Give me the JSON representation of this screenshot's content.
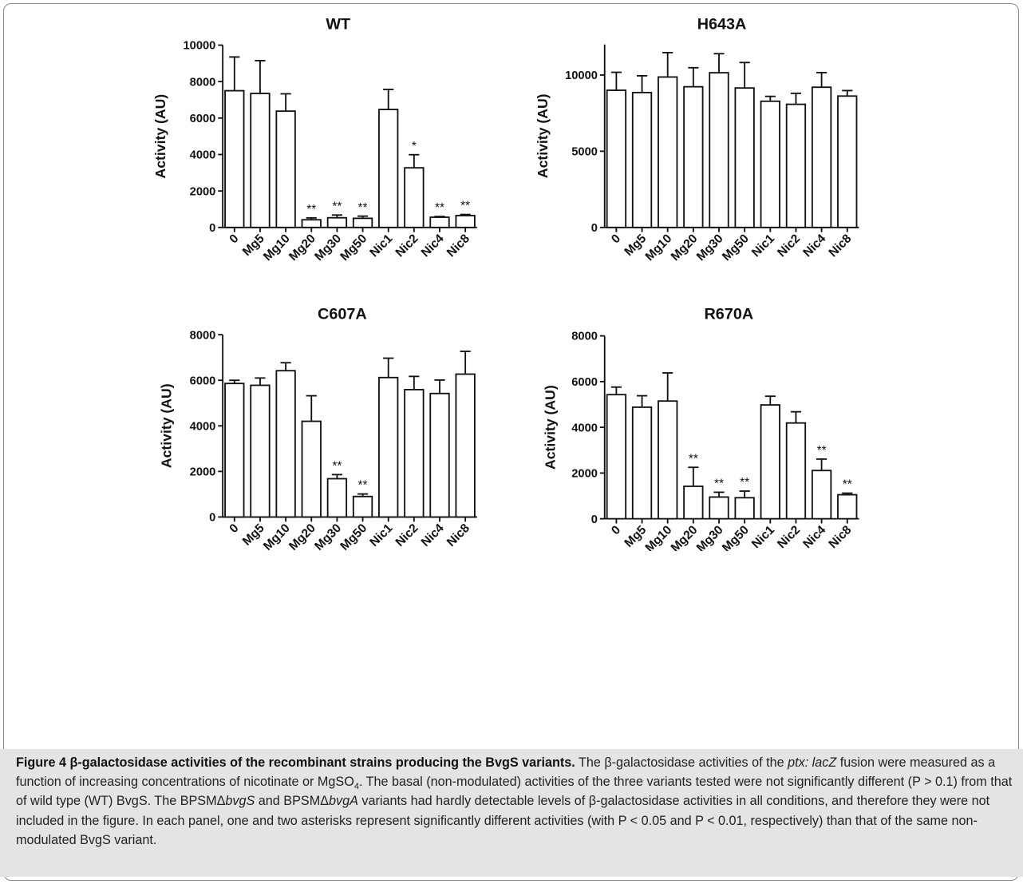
{
  "chart_data": [
    {
      "type": "bar",
      "title": "WT",
      "ylabel": "Activity (AU)",
      "categories": [
        "0",
        "Mg5",
        "Mg10",
        "Mg20",
        "Mg30",
        "Mg50",
        "Nic1",
        "Nic2",
        "Nic4",
        "Nic8"
      ],
      "values": [
        7500,
        7350,
        6380,
        420,
        530,
        500,
        6470,
        3270,
        560,
        650
      ],
      "error": [
        1850,
        1800,
        950,
        100,
        150,
        120,
        1100,
        720,
        40,
        60
      ],
      "significance": [
        "",
        "",
        "",
        "**",
        "**",
        "**",
        "",
        "*",
        "**",
        "**"
      ],
      "ylim": [
        0,
        10000
      ],
      "yticks": [
        0,
        2000,
        4000,
        6000,
        8000,
        10000
      ]
    },
    {
      "type": "bar",
      "title": "H643A",
      "ylabel": "Activity (AU)",
      "categories": [
        "0",
        "Mg5",
        "Mg10",
        "Mg20",
        "Mg30",
        "Mg50",
        "Nic1",
        "Nic2",
        "Nic4",
        "Nic8"
      ],
      "values": [
        9000,
        8850,
        9870,
        9230,
        10150,
        9150,
        8280,
        8080,
        9200,
        8620
      ],
      "error": [
        1180,
        1100,
        1600,
        1250,
        1250,
        1670,
        320,
        720,
        960,
        360
      ],
      "significance": [
        "",
        "",
        "",
        "",
        "",
        "",
        "",
        "",
        "",
        ""
      ],
      "ylim": [
        0,
        12000
      ],
      "yticks": [
        0,
        5000,
        10000
      ]
    },
    {
      "type": "bar",
      "title": "C607A",
      "ylabel": "Activity (AU)",
      "categories": [
        "0",
        "Mg5",
        "Mg10",
        "Mg20",
        "Mg30",
        "Mg50",
        "Nic1",
        "Nic2",
        "Nic4",
        "Nic8"
      ],
      "values": [
        5860,
        5780,
        6420,
        4200,
        1680,
        900,
        6120,
        5590,
        5420,
        6270
      ],
      "error": [
        140,
        320,
        350,
        1120,
        180,
        110,
        850,
        580,
        590,
        1000
      ],
      "significance": [
        "",
        "",
        "",
        "",
        "**",
        "**",
        "",
        "",
        "",
        ""
      ],
      "ylim": [
        0,
        8000
      ],
      "yticks": [
        0,
        2000,
        4000,
        6000,
        8000
      ]
    },
    {
      "type": "bar",
      "title": "R670A",
      "ylabel": "Activity (AU)",
      "categories": [
        "0",
        "Mg5",
        "Mg10",
        "Mg20",
        "Mg30",
        "Mg50",
        "Nic1",
        "Nic2",
        "Nic4",
        "Nic8"
      ],
      "values": [
        5430,
        4880,
        5150,
        1420,
        950,
        920,
        4980,
        4190,
        2110,
        1050
      ],
      "error": [
        330,
        500,
        1230,
        830,
        210,
        290,
        380,
        490,
        500,
        70
      ],
      "significance": [
        "",
        "",
        "",
        "**",
        "**",
        "**",
        "",
        "",
        "**",
        "**"
      ],
      "ylim": [
        0,
        8000
      ],
      "yticks": [
        0,
        2000,
        4000,
        6000,
        8000
      ]
    }
  ],
  "caption": {
    "figure_label": "Figure 4",
    "title": "β-galactosidase activities of the recombinant strains producing the BvgS variants.",
    "text_1": " The β-galactosidase activities of the ",
    "fusion_italic": "ptx: lacZ",
    "text_2": " fusion were measured as a function of increasing concentrations of nicotinate or MgSO",
    "text_sub": "4",
    "text_3": ". The basal (non-modulated) activities of the three variants tested were not significantly different (P > 0.1) from that of wild type (WT) BvgS. The BPSMΔ",
    "bvgS_italic": "bvgS",
    "text_4": " and BPSMΔ",
    "bvgA_italic": "bvgA",
    "text_5": " variants had hardly detectable levels of β-galactosidase activities in all conditions, and therefore they were not included in the figure. In each panel, one and two asterisks represent significantly different activities (with P < 0.05 and P < 0.01, respectively) than that of the same non-modulated BvgS variant."
  }
}
